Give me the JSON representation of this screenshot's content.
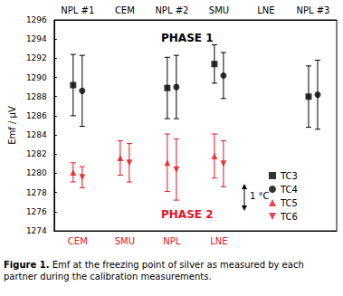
{
  "chart_data": {
    "type": "scatter",
    "categories": [
      "NPL #1",
      "CEM",
      "NPL #2",
      "SMU",
      "LNE",
      "NPL #3"
    ],
    "bottom_categories": [
      "CEM",
      "SMU",
      "NPL",
      "LNE",
      null,
      null
    ],
    "y_label": "Emf / µV",
    "ylim": [
      1274,
      1296
    ],
    "yticks": [
      1274,
      1276,
      1278,
      1280,
      1282,
      1284,
      1286,
      1288,
      1290,
      1292,
      1294,
      1296
    ],
    "annotations": [
      "PHASE 1",
      "PHASE 2",
      "1 °C"
    ],
    "legend": "lower right",
    "caption_label": "Figure 1.",
    "caption": "Emf at the freezing point of silver as measured by each partner during the calibration measurements.",
    "series": [
      {
        "name": "TC3",
        "color": "#000000",
        "marker": "square",
        "values": [
          1289.2,
          null,
          1288.9,
          1291.4,
          null,
          1288.0
        ],
        "errors": [
          3.2,
          null,
          3.2,
          2.0,
          null,
          3.2
        ]
      },
      {
        "name": "TC4",
        "color": "#000000",
        "marker": "circle",
        "values": [
          1288.6,
          null,
          1289.0,
          1290.2,
          null,
          1288.2
        ],
        "errors": [
          3.7,
          null,
          3.3,
          2.4,
          null,
          3.6
        ]
      },
      {
        "name": "TC5",
        "color": "#e8141c",
        "marker": "triangle-up",
        "values": [
          1280.1,
          1281.6,
          1281.1,
          1281.8,
          null,
          null
        ],
        "errors": [
          1.0,
          1.8,
          3.0,
          2.3,
          null,
          null
        ]
      },
      {
        "name": "TC6",
        "color": "#e8141c",
        "marker": "triangle-down",
        "values": [
          1279.6,
          1281.1,
          1280.4,
          1281.0,
          null,
          null
        ],
        "errors": [
          1.1,
          2.0,
          3.2,
          2.4,
          null,
          null
        ]
      }
    ]
  }
}
